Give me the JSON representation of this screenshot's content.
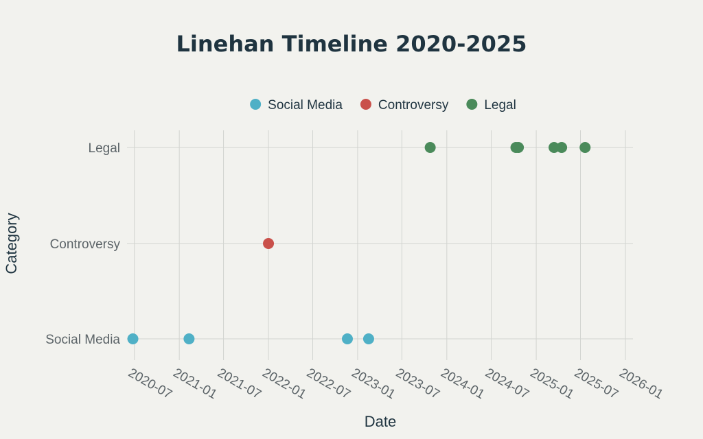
{
  "chart_data": {
    "type": "scatter",
    "title": "Linehan Timeline 2020-2025",
    "xlabel": "Date",
    "ylabel": "Category",
    "x_axis_type": "date",
    "xlim": [
      "2020-06-01",
      "2026-02-01"
    ],
    "x_ticks": [
      "2020-07",
      "2021-01",
      "2021-07",
      "2022-01",
      "2022-07",
      "2023-01",
      "2023-07",
      "2024-01",
      "2024-07",
      "2025-01",
      "2025-07",
      "2026-01"
    ],
    "categories": [
      "Social Media",
      "Controversy",
      "Legal"
    ],
    "grid": true,
    "legend_position": "top",
    "series": [
      {
        "name": "Social Media",
        "color": "#4fb0c6",
        "category": "Social Media",
        "x": [
          "2020-06-25",
          "2021-02-10",
          "2022-11-20",
          "2023-02-15"
        ]
      },
      {
        "name": "Controversy",
        "color": "#c9504a",
        "category": "Controversy",
        "x": [
          "2022-01-01"
        ]
      },
      {
        "name": "Legal",
        "color": "#4a8a5a",
        "category": "Legal",
        "x": [
          "2023-10-25",
          "2024-10-10",
          "2024-10-20",
          "2025-03-15",
          "2025-04-15",
          "2025-07-20"
        ]
      }
    ]
  }
}
